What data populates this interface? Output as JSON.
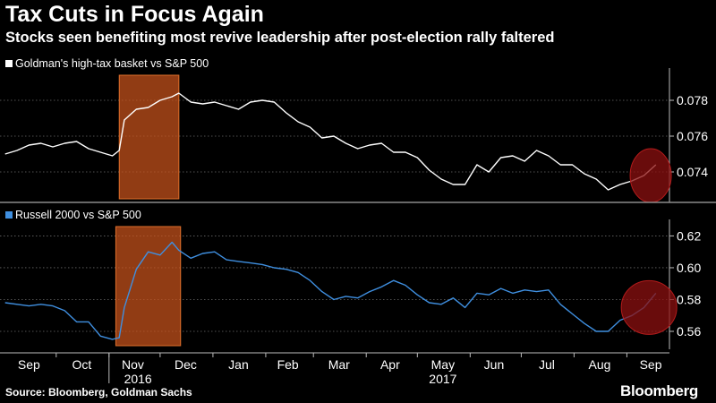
{
  "header": {
    "title": "Tax Cuts in Focus Again",
    "subtitle": "Stocks seen benefiting most revive leadership after post-election rally faltered"
  },
  "footer": {
    "source": "Source: Bloomberg, Goldman Sachs",
    "brand": "Bloomberg"
  },
  "colors": {
    "background": "#000000",
    "top_series": "#ffffff",
    "bottom_series": "#3f8fe0",
    "highlight_box": "#c9531c",
    "highlight_circle": "#8c1010",
    "grid": "#6a6a6a"
  },
  "chart_data": [
    {
      "type": "line",
      "legend": "Goldman's high-tax basket vs S&P 500",
      "legend_position": "top-left",
      "y_axis_side": "right",
      "ylim": [
        0.0725,
        0.0795
      ],
      "yticks": [
        0.074,
        0.076,
        0.078
      ],
      "ytick_labels": [
        "0.074",
        "0.076",
        "0.078"
      ],
      "grid": true,
      "highlight_range": [
        "2016-11-07",
        "2016-12-12"
      ],
      "highlight_circle_around": "2017-09-15",
      "series": [
        {
          "x": [
            "2016-09-01",
            "2016-09-08",
            "2016-09-15",
            "2016-09-22",
            "2016-09-29",
            "2016-10-06",
            "2016-10-13",
            "2016-10-20",
            "2016-10-27",
            "2016-11-03",
            "2016-11-07",
            "2016-11-10",
            "2016-11-17",
            "2016-11-24",
            "2016-12-01",
            "2016-12-08",
            "2016-12-12",
            "2016-12-19",
            "2016-12-26",
            "2017-01-02",
            "2017-01-09",
            "2017-01-16",
            "2017-01-23",
            "2017-01-30",
            "2017-02-06",
            "2017-02-13",
            "2017-02-20",
            "2017-02-27",
            "2017-03-06",
            "2017-03-13",
            "2017-03-20",
            "2017-03-27",
            "2017-04-03",
            "2017-04-10",
            "2017-04-17",
            "2017-04-24",
            "2017-05-01",
            "2017-05-08",
            "2017-05-15",
            "2017-05-22",
            "2017-05-29",
            "2017-06-05",
            "2017-06-12",
            "2017-06-19",
            "2017-06-26",
            "2017-07-03",
            "2017-07-10",
            "2017-07-17",
            "2017-07-24",
            "2017-07-31",
            "2017-08-07",
            "2017-08-14",
            "2017-08-21",
            "2017-08-28",
            "2017-09-04",
            "2017-09-11",
            "2017-09-18"
          ],
          "values": [
            0.075,
            0.0752,
            0.0755,
            0.0756,
            0.0754,
            0.0756,
            0.0757,
            0.0753,
            0.0751,
            0.0749,
            0.0752,
            0.0769,
            0.0775,
            0.0776,
            0.078,
            0.0782,
            0.0784,
            0.0779,
            0.0778,
            0.0779,
            0.0777,
            0.0775,
            0.0779,
            0.078,
            0.0779,
            0.0773,
            0.0768,
            0.0765,
            0.0759,
            0.076,
            0.0756,
            0.0753,
            0.0755,
            0.0756,
            0.0751,
            0.0751,
            0.0748,
            0.0741,
            0.0736,
            0.0733,
            0.0733,
            0.0744,
            0.074,
            0.0748,
            0.0749,
            0.0746,
            0.0752,
            0.0749,
            0.0744,
            0.0744,
            0.0739,
            0.0736,
            0.073,
            0.0733,
            0.0735,
            0.0738,
            0.0744
          ]
        }
      ]
    },
    {
      "type": "line",
      "legend": "Russell 2000 vs S&P 500",
      "legend_position": "top-left",
      "y_axis_side": "right",
      "ylim": [
        0.551,
        0.627
      ],
      "yticks": [
        0.56,
        0.58,
        0.6,
        0.62
      ],
      "ytick_labels": [
        "0.56",
        "0.58",
        "0.60",
        "0.62"
      ],
      "grid": true,
      "highlight_range": [
        "2016-11-05",
        "2016-12-13"
      ],
      "highlight_circle_around": "2017-09-14",
      "x_tick_labels": [
        "Sep",
        "Oct",
        "Nov",
        "Dec",
        "Jan",
        "Feb",
        "Mar",
        "Apr",
        "May",
        "Jun",
        "Jul",
        "Aug",
        "Sep"
      ],
      "x_year_labels": [
        "2016",
        "2017"
      ],
      "series": [
        {
          "x": [
            "2016-09-01",
            "2016-09-08",
            "2016-09-15",
            "2016-09-22",
            "2016-09-29",
            "2016-10-06",
            "2016-10-13",
            "2016-10-20",
            "2016-10-27",
            "2016-11-03",
            "2016-11-07",
            "2016-11-10",
            "2016-11-17",
            "2016-11-24",
            "2016-12-01",
            "2016-12-08",
            "2016-12-12",
            "2016-12-19",
            "2016-12-26",
            "2017-01-02",
            "2017-01-09",
            "2017-01-16",
            "2017-01-23",
            "2017-01-30",
            "2017-02-06",
            "2017-02-13",
            "2017-02-20",
            "2017-02-27",
            "2017-03-06",
            "2017-03-13",
            "2017-03-20",
            "2017-03-27",
            "2017-04-03",
            "2017-04-10",
            "2017-04-17",
            "2017-04-24",
            "2017-05-01",
            "2017-05-08",
            "2017-05-15",
            "2017-05-22",
            "2017-05-29",
            "2017-06-05",
            "2017-06-12",
            "2017-06-19",
            "2017-06-26",
            "2017-07-03",
            "2017-07-10",
            "2017-07-17",
            "2017-07-24",
            "2017-07-31",
            "2017-08-07",
            "2017-08-14",
            "2017-08-21",
            "2017-08-28",
            "2017-09-04",
            "2017-09-11",
            "2017-09-18"
          ],
          "values": [
            0.578,
            0.577,
            0.576,
            0.577,
            0.576,
            0.573,
            0.566,
            0.566,
            0.557,
            0.555,
            0.556,
            0.575,
            0.599,
            0.61,
            0.608,
            0.616,
            0.611,
            0.606,
            0.609,
            0.61,
            0.605,
            0.604,
            0.603,
            0.602,
            0.6,
            0.599,
            0.597,
            0.592,
            0.585,
            0.58,
            0.582,
            0.581,
            0.585,
            0.588,
            0.592,
            0.589,
            0.583,
            0.578,
            0.577,
            0.581,
            0.575,
            0.584,
            0.583,
            0.587,
            0.584,
            0.586,
            0.585,
            0.586,
            0.577,
            0.571,
            0.565,
            0.56,
            0.56,
            0.567,
            0.57,
            0.575,
            0.584
          ]
        }
      ]
    }
  ]
}
